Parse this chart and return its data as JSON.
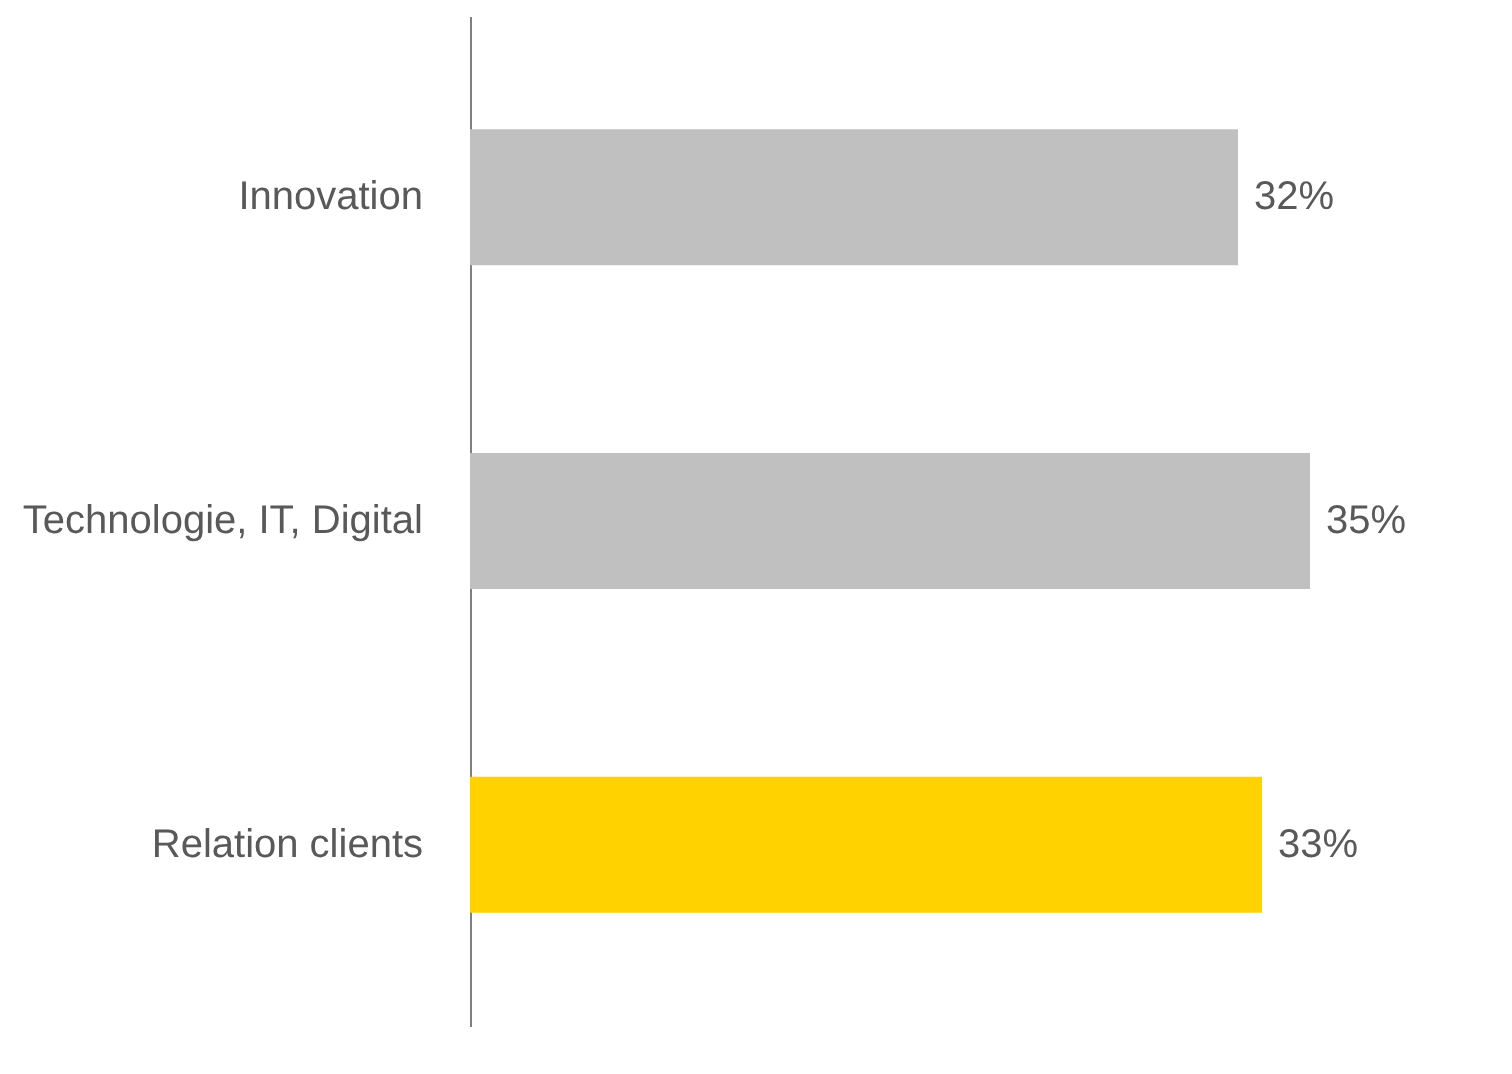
{
  "chart_data": {
    "type": "bar",
    "orientation": "horizontal",
    "categories": [
      "Innovation",
      "Technologie, IT, Digital",
      "Relation clients"
    ],
    "values": [
      32,
      35,
      33
    ],
    "colors": [
      "#c0c0c0",
      "#c0c0c0",
      "#ffd200"
    ],
    "value_labels": [
      "32%",
      "35%",
      "33%"
    ]
  }
}
